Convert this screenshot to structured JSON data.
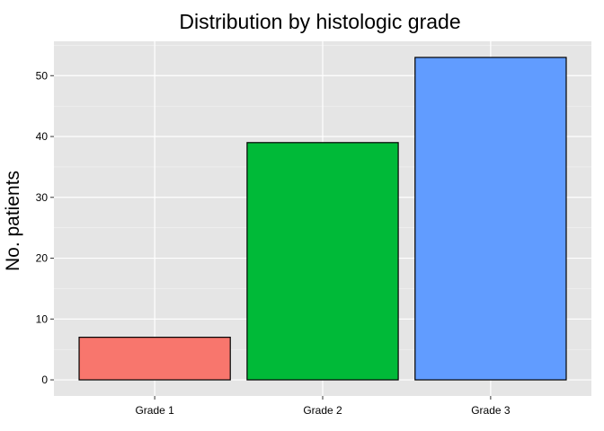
{
  "chart_data": {
    "type": "bar",
    "title": "Distribution by histologic grade",
    "xlabel": "",
    "ylabel": "No. patients",
    "categories": [
      "Grade 1",
      "Grade 2",
      "Grade 3"
    ],
    "values": [
      7,
      39,
      53
    ],
    "colors": [
      "#F8766D",
      "#00BA38",
      "#619CFF"
    ],
    "bar_outline_color": "#000000",
    "panel_background": "#E5E5E5",
    "grid_color": "#FFFFFF",
    "grid": true,
    "legend": "none",
    "ylim": [
      -2.65,
      55.65
    ],
    "yticks": [
      0,
      10,
      20,
      30,
      40,
      50
    ],
    "ytick_labels": [
      "0",
      "10",
      "20",
      "30",
      "40",
      "50"
    ]
  }
}
